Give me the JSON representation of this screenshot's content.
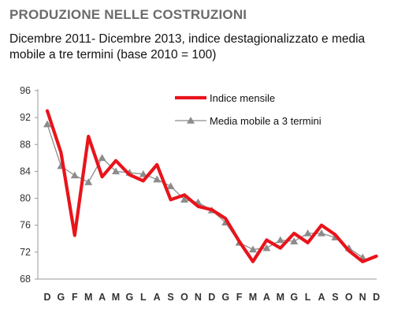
{
  "header": {
    "title": "PRODUZIONE NELLE COSTRUZIONI",
    "subtitle": "Dicembre 2011- Dicembre 2013, indice destagionalizzato e media mobile a tre termini (base 2010 = 100)"
  },
  "colors": {
    "series_monthly": "#e8141b",
    "series_moving_avg": "#8c8c8c",
    "axis": "#9a9a9a"
  },
  "chart_data": {
    "type": "line",
    "title": "PRODUZIONE NELLE COSTRUZIONI",
    "subtitle": "Dicembre 2011- Dicembre 2013, indice destagionalizzato e media mobile a tre termini (base 2010 = 100)",
    "xlabel": "",
    "ylabel": "",
    "ylim": [
      68,
      96
    ],
    "yticks": [
      96,
      92,
      88,
      84,
      80,
      76,
      72,
      68
    ],
    "grid": false,
    "legend": "top-right",
    "categories": [
      "D",
      "G",
      "F",
      "M",
      "A",
      "M",
      "G",
      "L",
      "A",
      "S",
      "O",
      "N",
      "D",
      "G",
      "F",
      "M",
      "A",
      "M",
      "G",
      "L",
      "A",
      "S",
      "O",
      "N",
      "D"
    ],
    "series": [
      {
        "name": "Indice mensile",
        "style": "thick-red-line",
        "values": [
          93.0,
          86.8,
          74.5,
          89.2,
          83.2,
          85.6,
          83.5,
          82.6,
          85.0,
          79.8,
          80.5,
          78.8,
          78.3,
          77.0,
          73.6,
          70.6,
          73.8,
          72.6,
          74.8,
          73.4,
          76.0,
          74.6,
          72.2,
          70.6,
          71.4
        ]
      },
      {
        "name": "Media mobile a 3 termini",
        "style": "grey-line-triangles",
        "values": [
          91.0,
          84.8,
          83.4,
          82.4,
          86.0,
          84.0,
          83.8,
          83.6,
          82.8,
          81.8,
          79.8,
          79.4,
          78.2,
          76.4,
          73.4,
          72.4,
          72.6,
          73.8,
          73.6,
          74.8,
          74.8,
          74.2,
          72.6,
          71.2,
          null
        ]
      }
    ]
  }
}
